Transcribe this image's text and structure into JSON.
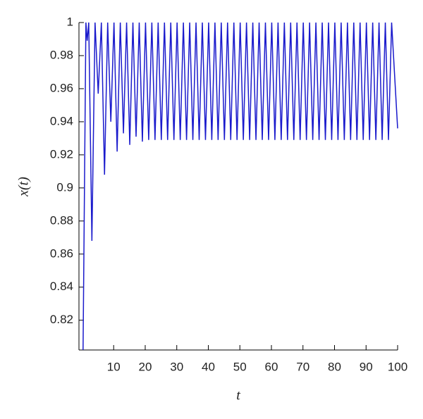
{
  "chart_data": {
    "type": "line",
    "xlabel": "t",
    "ylabel": "x(t)",
    "color": "#1a1acc",
    "xlim": [
      -1,
      100
    ],
    "ylim": [
      0.802,
      1
    ],
    "xticks": [
      10,
      20,
      30,
      40,
      50,
      60,
      70,
      80,
      90,
      100
    ],
    "yticks": [
      0.82,
      0.84,
      0.86,
      0.88,
      0.9,
      0.92,
      0.94,
      0.96,
      0.98,
      1
    ],
    "x": [
      0.3,
      1.2,
      1.6,
      2.1,
      3.1,
      4.1,
      5.1,
      6.1,
      7.1,
      8.1,
      9.1,
      10.1,
      11.1,
      12.1,
      13.1,
      14.1,
      15.1,
      16.1,
      17.1,
      18.1,
      19.1,
      20.1,
      21.1,
      22.1,
      23.1,
      24.1,
      25.1,
      26.1,
      27.1,
      28.1,
      29.1,
      30.1,
      31.1,
      32.1,
      33.1,
      34.1,
      35.1,
      36.1,
      37.1,
      38.1,
      39.1,
      40.1,
      41.1,
      42.1,
      43.1,
      44.1,
      45.1,
      46.1,
      47.1,
      48.1,
      49.1,
      50.1,
      51.1,
      52.1,
      53.1,
      54.1,
      55.1,
      56.1,
      57.1,
      58.1,
      59.1,
      60.1,
      61.1,
      62.1,
      63.1,
      64.1,
      65.1,
      66.1,
      67.1,
      68.1,
      69.1,
      70.1,
      71.1,
      72.1,
      73.1,
      74.1,
      75.1,
      76.1,
      77.1,
      78.1,
      79.1,
      80.1,
      81.1,
      82.1,
      83.1,
      84.1,
      85.1,
      86.1,
      87.1,
      88.1,
      89.1,
      90.1,
      91.1,
      92.1,
      93.1,
      94.1,
      95.1,
      96.1,
      97.1,
      98.1,
      100
    ],
    "values": [
      0.802,
      1,
      0.989,
      1,
      0.868,
      1,
      0.957,
      1,
      0.908,
      1,
      0.94,
      1,
      0.922,
      1,
      0.933,
      1,
      0.926,
      1,
      0.931,
      1,
      0.928,
      1,
      0.929,
      1,
      0.929,
      1,
      0.929,
      1,
      0.929,
      1,
      0.929,
      1,
      0.929,
      1,
      0.929,
      1,
      0.929,
      1,
      0.929,
      1,
      0.929,
      1,
      0.929,
      1,
      0.929,
      1,
      0.929,
      1,
      0.929,
      1,
      0.929,
      1,
      0.929,
      1,
      0.929,
      1,
      0.929,
      1,
      0.929,
      1,
      0.929,
      1,
      0.929,
      1,
      0.929,
      1,
      0.929,
      1,
      0.929,
      1,
      0.929,
      1,
      0.929,
      1,
      0.929,
      1,
      0.929,
      1,
      0.929,
      1,
      0.929,
      1,
      0.929,
      1,
      0.929,
      1,
      0.929,
      1,
      0.929,
      1,
      0.929,
      1,
      0.929,
      1,
      0.929,
      1,
      0.929,
      1,
      0.929,
      1,
      0.936
    ]
  }
}
